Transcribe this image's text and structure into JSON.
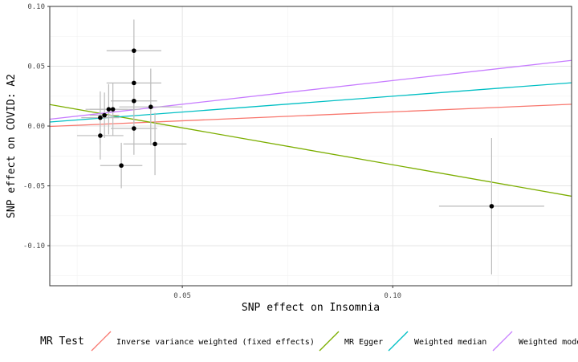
{
  "chart_data": {
    "type": "scatter",
    "xlabel": "SNP effect on Insomnia",
    "ylabel": "SNP effect on COVID: A2",
    "xlim": [
      0.0185,
      0.1425
    ],
    "ylim": [
      -0.1335,
      0.1
    ],
    "x_ticks": [
      0.05,
      0.1
    ],
    "x_tick_labels": [
      "0.05",
      "0.10"
    ],
    "y_ticks": [
      0.1,
      0.05,
      0.0,
      -0.05,
      -0.1
    ],
    "y_tick_labels": [
      "0.10",
      "0.05",
      "0.00",
      "-0.05",
      "-0.10"
    ],
    "grid": true,
    "error_bar_color": "#bbbbbb",
    "point_color": "#000000",
    "points": [
      {
        "x": 0.0385,
        "y": 0.063,
        "xerr": 0.0065,
        "yerr": 0.026
      },
      {
        "x": 0.0385,
        "y": 0.036,
        "xerr": 0.0065,
        "yerr": 0.022
      },
      {
        "x": 0.0385,
        "y": 0.021,
        "xerr": 0.0055,
        "yerr": 0.019
      },
      {
        "x": 0.0385,
        "y": -0.002,
        "xerr": 0.0055,
        "yerr": 0.022
      },
      {
        "x": 0.0425,
        "y": 0.016,
        "xerr": 0.0075,
        "yerr": 0.032
      },
      {
        "x": 0.0435,
        "y": -0.015,
        "xerr": 0.0075,
        "yerr": 0.026
      },
      {
        "x": 0.0355,
        "y": -0.033,
        "xerr": 0.005,
        "yerr": 0.019
      },
      {
        "x": 0.0335,
        "y": 0.014,
        "xerr": 0.0065,
        "yerr": 0.022
      },
      {
        "x": 0.0325,
        "y": 0.014,
        "xerr": 0.0045,
        "yerr": 0.021
      },
      {
        "x": 0.0315,
        "y": 0.009,
        "xerr": 0.0035,
        "yerr": 0.019
      },
      {
        "x": 0.0305,
        "y": 0.007,
        "xerr": 0.0045,
        "yerr": 0.022
      },
      {
        "x": 0.0305,
        "y": -0.008,
        "xerr": 0.0055,
        "yerr": 0.02
      },
      {
        "x": 0.1235,
        "y": -0.067,
        "xerr": 0.0125,
        "yerr": 0.057
      }
    ],
    "lines": [
      {
        "name": "Inverse variance weighted (fixed effects)",
        "color": "#f8766d",
        "intercept": -0.0031,
        "slope": 0.1497
      },
      {
        "name": "MR Egger",
        "color": "#7cae00",
        "intercept": 0.0294,
        "slope": -0.6178
      },
      {
        "name": "Weighted median",
        "color": "#00bfc4",
        "intercept": -0.0015,
        "slope": 0.2645
      },
      {
        "name": "Weighted mode",
        "color": "#c77cff",
        "intercept": -0.0016,
        "slope": 0.3962
      }
    ],
    "legend": {
      "title": "MR Test",
      "position": "bottom",
      "entries": [
        "Inverse variance weighted (fixed effects)",
        "MR Egger",
        "Weighted median",
        "Weighted mode"
      ]
    }
  }
}
